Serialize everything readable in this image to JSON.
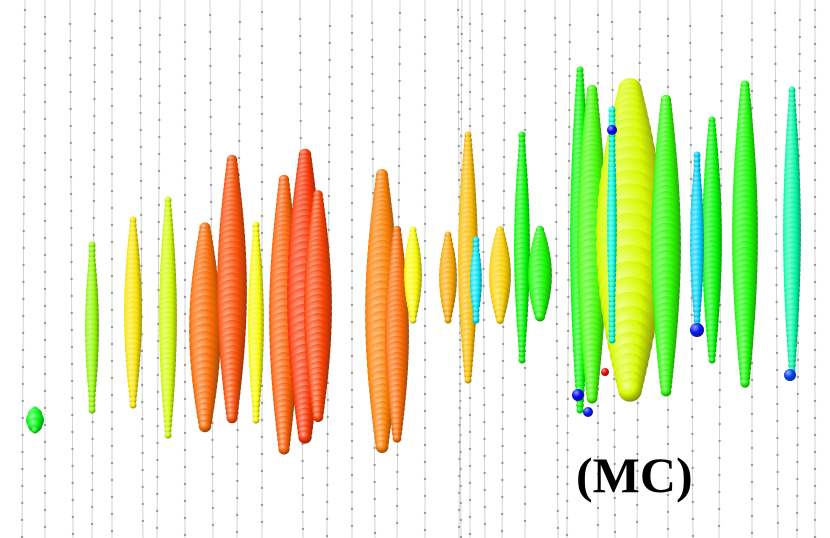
{
  "label": "(MC)"
}
